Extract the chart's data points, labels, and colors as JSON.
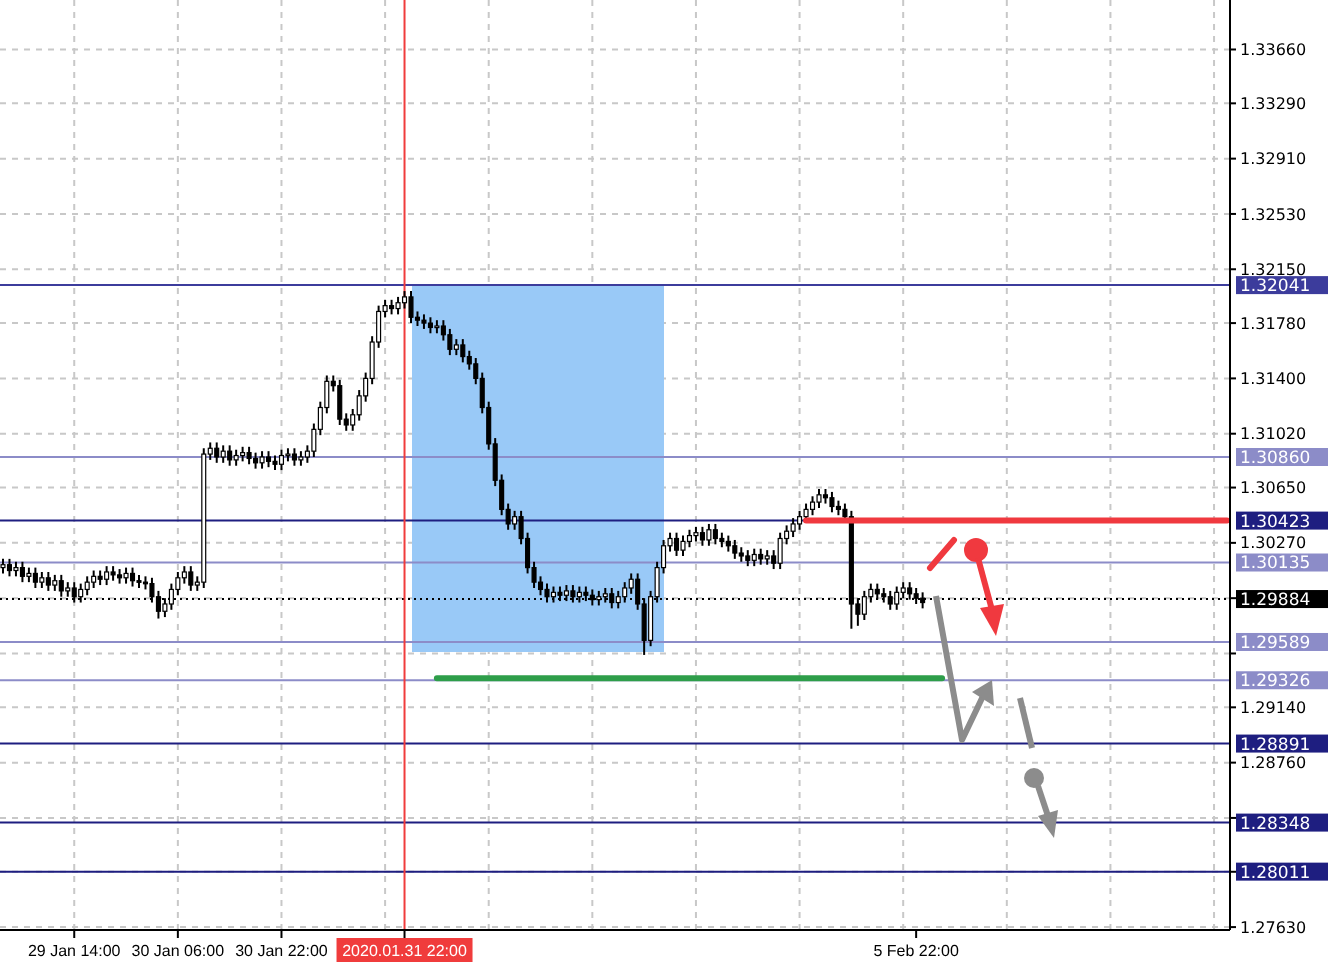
{
  "chart_data": {
    "type": "candlestick",
    "categories": [
      null,
      null,
      null,
      null,
      null,
      null,
      null,
      null,
      null,
      null,
      null,
      "29 Jan 14:00",
      null,
      null,
      null,
      null,
      null,
      null,
      null,
      null,
      null,
      null,
      null,
      null,
      null,
      null,
      null,
      "30 Jan 06:00",
      null,
      null,
      null,
      null,
      null,
      null,
      null,
      null,
      null,
      null,
      null,
      null,
      null,
      null,
      null,
      "30 Jan 22:00",
      null,
      null,
      null,
      null,
      null,
      null,
      null,
      null,
      null,
      null,
      null,
      null,
      null,
      null,
      null,
      null,
      null,
      null,
      "2020.01.31 22:00",
      null,
      null,
      null,
      null,
      null,
      null,
      null,
      null,
      null,
      null,
      null,
      null,
      null,
      null,
      null,
      null,
      null,
      null,
      null,
      null,
      null,
      null,
      null,
      null,
      null,
      null,
      null,
      null,
      null,
      null,
      null,
      null,
      null,
      null,
      null,
      null,
      null,
      null,
      null,
      null,
      null,
      null,
      null,
      null,
      null,
      null,
      null,
      null,
      null,
      null,
      null,
      null,
      null,
      null,
      null,
      null,
      null,
      null,
      null,
      null,
      null,
      null,
      null,
      null,
      null,
      null,
      null,
      null,
      null,
      null,
      null,
      null,
      null,
      null,
      null,
      null,
      null,
      null,
      "5 Feb 22:00",
      null,
      null,
      null,
      null,
      null,
      null,
      null,
      null,
      null,
      null,
      null,
      null,
      null,
      null,
      null,
      null,
      null,
      null,
      null,
      null,
      null,
      null,
      null,
      null,
      null,
      null,
      null,
      null,
      null,
      null,
      null,
      null,
      null,
      null,
      null,
      null,
      null,
      null,
      null,
      null,
      null,
      null,
      null,
      null,
      null,
      null,
      null,
      null
    ],
    "ohlc": [
      [
        1.301,
        1.3016,
        1.3006,
        1.3012
      ],
      [
        1.3012,
        1.3016,
        1.3004,
        1.3008
      ],
      [
        1.3008,
        1.3014,
        1.3004,
        1.301
      ],
      [
        1.301,
        1.3014,
        1.3,
        1.3004
      ],
      [
        1.3004,
        1.301,
        1.3,
        1.3006
      ],
      [
        1.3006,
        1.301,
        1.2996,
        1.3
      ],
      [
        1.3,
        1.3007,
        1.2996,
        1.3003
      ],
      [
        1.3003,
        1.3007,
        1.2994,
        1.2998
      ],
      [
        1.2998,
        1.3005,
        1.2994,
        1.3001
      ],
      [
        1.3001,
        1.3005,
        1.299,
        1.2994
      ],
      [
        1.2994,
        1.3,
        1.299,
        1.2996
      ],
      [
        1.2996,
        1.3,
        1.2986,
        1.299
      ],
      [
        1.299,
        1.2999,
        1.2986,
        1.2995
      ],
      [
        1.2995,
        1.3004,
        1.2991,
        1.3
      ],
      [
        1.3,
        1.3008,
        1.2996,
        1.3004
      ],
      [
        1.3004,
        1.3008,
        1.2998,
        1.3002
      ],
      [
        1.3002,
        1.3011,
        1.2998,
        1.3007
      ],
      [
        1.3007,
        1.3011,
        1.3001,
        1.3005
      ],
      [
        1.3005,
        1.3009,
        1.2999,
        1.3003
      ],
      [
        1.3003,
        1.301,
        1.2999,
        1.3006
      ],
      [
        1.3006,
        1.301,
        1.2997,
        1.3001
      ],
      [
        1.3001,
        1.3005,
        1.2996,
        1.3
      ],
      [
        1.3,
        1.3004,
        1.2995,
        1.2999
      ],
      [
        1.2999,
        1.3003,
        1.2986,
        1.299
      ],
      [
        1.299,
        1.2994,
        1.2975,
        1.298
      ],
      [
        1.298,
        1.2989,
        1.2976,
        1.2985
      ],
      [
        1.2985,
        1.2999,
        1.2981,
        1.2995
      ],
      [
        1.2995,
        1.3007,
        1.2991,
        1.3003
      ],
      [
        1.3003,
        1.3011,
        1.2999,
        1.3007
      ],
      [
        1.3007,
        1.3011,
        1.2994,
        1.2998
      ],
      [
        1.2998,
        1.3004,
        1.2994,
        1.3
      ],
      [
        1.3,
        1.3092,
        1.2996,
        1.3088
      ],
      [
        1.3088,
        1.3096,
        1.3084,
        1.3092
      ],
      [
        1.3092,
        1.3096,
        1.3082,
        1.3086
      ],
      [
        1.3086,
        1.3094,
        1.3082,
        1.309
      ],
      [
        1.309,
        1.3094,
        1.308,
        1.3084
      ],
      [
        1.3084,
        1.3091,
        1.308,
        1.3087
      ],
      [
        1.3087,
        1.3093,
        1.3083,
        1.3089
      ],
      [
        1.3089,
        1.3093,
        1.3081,
        1.3085
      ],
      [
        1.3085,
        1.3089,
        1.3078,
        1.3082
      ],
      [
        1.3082,
        1.309,
        1.3078,
        1.3086
      ],
      [
        1.3086,
        1.309,
        1.3079,
        1.3083
      ],
      [
        1.3083,
        1.3087,
        1.3077,
        1.3081
      ],
      [
        1.3081,
        1.3091,
        1.3077,
        1.3087
      ],
      [
        1.3087,
        1.3092,
        1.3083,
        1.3088
      ],
      [
        1.3088,
        1.3092,
        1.308,
        1.3084
      ],
      [
        1.3084,
        1.309,
        1.308,
        1.3086
      ],
      [
        1.3086,
        1.3094,
        1.3082,
        1.309
      ],
      [
        1.309,
        1.3109,
        1.3086,
        1.3105
      ],
      [
        1.3105,
        1.3124,
        1.3101,
        1.312
      ],
      [
        1.312,
        1.3142,
        1.3116,
        1.3138
      ],
      [
        1.3138,
        1.3142,
        1.3131,
        1.3135
      ],
      [
        1.3135,
        1.3139,
        1.3108,
        1.3112
      ],
      [
        1.3112,
        1.3116,
        1.3104,
        1.3108
      ],
      [
        1.3108,
        1.3119,
        1.3104,
        1.3115
      ],
      [
        1.3115,
        1.3132,
        1.3111,
        1.3128
      ],
      [
        1.3128,
        1.3144,
        1.3124,
        1.314
      ],
      [
        1.314,
        1.3169,
        1.3136,
        1.3165
      ],
      [
        1.3165,
        1.319,
        1.3161,
        1.3186
      ],
      [
        1.3186,
        1.3194,
        1.3182,
        1.319
      ],
      [
        1.319,
        1.3194,
        1.3184,
        1.3188
      ],
      [
        1.3188,
        1.3196,
        1.3184,
        1.3192
      ],
      [
        1.3192,
        1.32,
        1.3188,
        1.3196
      ],
      [
        1.3196,
        1.32,
        1.3178,
        1.3182
      ],
      [
        1.3182,
        1.3186,
        1.3176,
        1.318
      ],
      [
        1.318,
        1.3184,
        1.3174,
        1.3178
      ],
      [
        1.3178,
        1.3182,
        1.3171,
        1.3175
      ],
      [
        1.3175,
        1.318,
        1.3171,
        1.3176
      ],
      [
        1.3176,
        1.318,
        1.3166,
        1.317
      ],
      [
        1.317,
        1.3174,
        1.3156,
        1.316
      ],
      [
        1.316,
        1.3167,
        1.3156,
        1.3163
      ],
      [
        1.3163,
        1.3167,
        1.3151,
        1.3155
      ],
      [
        1.3155,
        1.3159,
        1.3146,
        1.315
      ],
      [
        1.315,
        1.3154,
        1.3136,
        1.314
      ],
      [
        1.314,
        1.3144,
        1.3116,
        1.312
      ],
      [
        1.312,
        1.3124,
        1.3091,
        1.3095
      ],
      [
        1.3095,
        1.3099,
        1.3066,
        1.307
      ],
      [
        1.307,
        1.3074,
        1.3046,
        1.305
      ],
      [
        1.305,
        1.3054,
        1.3036,
        1.304
      ],
      [
        1.304,
        1.3049,
        1.3036,
        1.3045
      ],
      [
        1.3045,
        1.3049,
        1.3026,
        1.303
      ],
      [
        1.303,
        1.3034,
        1.3006,
        1.301
      ],
      [
        1.301,
        1.3014,
        1.2996,
        1.3
      ],
      [
        1.3,
        1.3004,
        1.2991,
        1.2995
      ],
      [
        1.2995,
        1.2999,
        1.2986,
        1.299
      ],
      [
        1.299,
        1.2997,
        1.2986,
        1.2993
      ],
      [
        1.2993,
        1.2997,
        1.2987,
        1.2991
      ],
      [
        1.2991,
        1.2998,
        1.2987,
        1.2994
      ],
      [
        1.2994,
        1.2998,
        1.2986,
        1.299
      ],
      [
        1.299,
        1.2997,
        1.2986,
        1.2993
      ],
      [
        1.2993,
        1.2997,
        1.2987,
        1.2991
      ],
      [
        1.2991,
        1.2995,
        1.2984,
        1.2988
      ],
      [
        1.2988,
        1.2994,
        1.2984,
        1.299
      ],
      [
        1.299,
        1.2996,
        1.2986,
        1.2992
      ],
      [
        1.2992,
        1.2996,
        1.2982,
        1.2986
      ],
      [
        1.2986,
        1.2994,
        1.2982,
        1.299
      ],
      [
        1.299,
        1.3,
        1.2986,
        1.2996
      ],
      [
        1.2996,
        1.3006,
        1.2992,
        1.3002
      ],
      [
        1.3002,
        1.3006,
        1.2981,
        1.2985
      ],
      [
        1.2985,
        1.2989,
        1.295,
        1.296
      ],
      [
        1.296,
        1.2994,
        1.2956,
        1.299
      ],
      [
        1.299,
        1.3014,
        1.2986,
        1.301
      ],
      [
        1.301,
        1.3029,
        1.3006,
        1.3025
      ],
      [
        1.3025,
        1.3034,
        1.3021,
        1.303
      ],
      [
        1.303,
        1.3034,
        1.3018,
        1.3022
      ],
      [
        1.3022,
        1.3032,
        1.3018,
        1.3028
      ],
      [
        1.3028,
        1.3036,
        1.3024,
        1.3032
      ],
      [
        1.3032,
        1.3038,
        1.3028,
        1.3034
      ],
      [
        1.3034,
        1.3038,
        1.3025,
        1.3029
      ],
      [
        1.3029,
        1.304,
        1.3025,
        1.3036
      ],
      [
        1.3036,
        1.304,
        1.3026,
        1.303
      ],
      [
        1.303,
        1.3034,
        1.3024,
        1.3028
      ],
      [
        1.3028,
        1.3032,
        1.3021,
        1.3025
      ],
      [
        1.3025,
        1.3029,
        1.3016,
        1.302
      ],
      [
        1.302,
        1.3024,
        1.3014,
        1.3018
      ],
      [
        1.3018,
        1.3022,
        1.3011,
        1.3015
      ],
      [
        1.3015,
        1.3023,
        1.3011,
        1.3019
      ],
      [
        1.3019,
        1.3023,
        1.3012,
        1.3016
      ],
      [
        1.3016,
        1.3022,
        1.3012,
        1.3018
      ],
      [
        1.3018,
        1.3022,
        1.3009,
        1.3013
      ],
      [
        1.3013,
        1.3034,
        1.3009,
        1.303
      ],
      [
        1.303,
        1.3039,
        1.3026,
        1.3035
      ],
      [
        1.3035,
        1.3044,
        1.3031,
        1.304
      ],
      [
        1.304,
        1.3049,
        1.3036,
        1.3045
      ],
      [
        1.3045,
        1.3054,
        1.3041,
        1.305
      ],
      [
        1.305,
        1.3059,
        1.3046,
        1.3055
      ],
      [
        1.3055,
        1.3064,
        1.3051,
        1.306
      ],
      [
        1.306,
        1.3064,
        1.3054,
        1.3058
      ],
      [
        1.3058,
        1.3062,
        1.3048,
        1.3052
      ],
      [
        1.3052,
        1.3056,
        1.3046,
        1.305
      ],
      [
        1.305,
        1.3054,
        1.3041,
        1.3045
      ],
      [
        1.3045,
        1.3049,
        1.2968,
        1.2985
      ],
      [
        1.2985,
        1.2989,
        1.297,
        1.2978
      ],
      [
        1.2978,
        1.2994,
        1.2974,
        1.299
      ],
      [
        1.299,
        1.2999,
        1.2986,
        1.2995
      ],
      [
        1.2995,
        1.2999,
        1.2988,
        1.2992
      ],
      [
        1.2992,
        1.2996,
        1.2986,
        1.299
      ],
      [
        1.299,
        1.2994,
        1.2981,
        1.2985
      ],
      [
        1.2985,
        1.2997,
        1.2981,
        1.2993
      ],
      [
        1.2993,
        1.3,
        1.2989,
        1.2996
      ],
      [
        1.2996,
        1.3,
        1.2988,
        1.2992
      ],
      [
        1.2992,
        1.2996,
        1.2985,
        1.2989
      ],
      [
        1.2989,
        1.2993,
        1.2982,
        1.2986
      ],
      null,
      null,
      null,
      null,
      null,
      null,
      null,
      null,
      null,
      null,
      null,
      null,
      null,
      null,
      null,
      null,
      null,
      null,
      null,
      null,
      null,
      null,
      null,
      null,
      null,
      null,
      null,
      null,
      null,
      null,
      null,
      null,
      null,
      null,
      null,
      null,
      null,
      null,
      null,
      null,
      null,
      null,
      null,
      null,
      null,
      null,
      null
    ],
    "series": [
      {
        "type": "line",
        "color": "#2e9e4a",
        "values": [
          null,
          null,
          null,
          null,
          null,
          null,
          null,
          null,
          null,
          null,
          null,
          null,
          null,
          null,
          null,
          null,
          null,
          null,
          null,
          null,
          null,
          null,
          null,
          null,
          null,
          null,
          null,
          null,
          null,
          null,
          null,
          null,
          null,
          null,
          null,
          null,
          null,
          null,
          null,
          null,
          null,
          null,
          null,
          null,
          null,
          null,
          null,
          null,
          null,
          null,
          null,
          null,
          null,
          null,
          null,
          null,
          null,
          null,
          null,
          null,
          null,
          null,
          null,
          null,
          null,
          null,
          null,
          1.2934,
          1.2934,
          1.2934,
          1.2934,
          1.2934,
          1.2934,
          1.2934,
          1.2934,
          1.2934,
          1.2934,
          1.2934,
          1.2934,
          1.2934,
          1.2934,
          1.2934,
          1.2934,
          1.2934,
          1.2934,
          1.2934,
          1.2934,
          1.2934,
          1.2934,
          1.2934,
          1.2934,
          1.2934,
          1.2934,
          1.2934,
          1.2934,
          1.2934,
          1.2934,
          1.2934,
          1.2934,
          1.2934,
          1.2934,
          1.2934,
          1.2934,
          1.2934,
          1.2934,
          1.2934,
          1.2934,
          1.2934,
          1.2934,
          1.2934,
          1.2934,
          1.2934,
          1.2934,
          1.2934,
          1.2934,
          1.2934,
          1.2934,
          1.2934,
          1.2934,
          1.2934,
          1.2934,
          1.2934,
          1.2934,
          1.2934,
          1.2934,
          1.2934,
          1.2934,
          1.2934,
          1.2934,
          1.2934,
          1.2934,
          1.2934,
          1.2934,
          1.2934,
          1.2934,
          1.2934,
          1.2934,
          1.2934,
          1.2934,
          1.2934,
          1.2934,
          1.2934,
          1.2934,
          1.2934,
          1.2934,
          1.2934,
          null,
          null,
          null,
          null,
          null,
          null,
          null,
          null,
          null,
          null,
          null,
          null,
          null,
          null,
          null,
          null,
          null,
          null,
          null,
          null,
          null,
          null,
          null,
          null,
          null,
          null,
          null,
          null,
          null,
          null,
          null,
          null,
          null,
          null,
          null,
          null,
          null,
          null,
          null,
          null,
          null,
          null,
          null,
          null
        ]
      },
      {
        "type": "line",
        "color": "#f0393f",
        "values": [
          null,
          null,
          null,
          null,
          null,
          null,
          null,
          null,
          null,
          null,
          null,
          null,
          null,
          null,
          null,
          null,
          null,
          null,
          null,
          null,
          null,
          null,
          null,
          null,
          null,
          null,
          null,
          null,
          null,
          null,
          null,
          null,
          null,
          null,
          null,
          null,
          null,
          null,
          null,
          null,
          null,
          null,
          null,
          null,
          null,
          null,
          null,
          null,
          null,
          null,
          null,
          null,
          null,
          null,
          null,
          null,
          null,
          null,
          null,
          null,
          null,
          null,
          null,
          null,
          null,
          null,
          null,
          null,
          null,
          null,
          null,
          null,
          null,
          null,
          null,
          null,
          null,
          null,
          null,
          null,
          null,
          null,
          null,
          null,
          null,
          null,
          null,
          null,
          null,
          null,
          null,
          null,
          null,
          null,
          null,
          null,
          null,
          null,
          null,
          null,
          null,
          null,
          null,
          null,
          null,
          null,
          null,
          null,
          null,
          null,
          null,
          null,
          null,
          null,
          null,
          null,
          null,
          null,
          null,
          null,
          null,
          null,
          null,
          null,
          1.30423,
          1.30423,
          1.30423,
          1.30423,
          1.30423,
          1.30423,
          1.30423,
          1.30423,
          1.30423,
          1.30423,
          1.30423,
          1.30423,
          1.30423,
          1.30423,
          1.30423,
          1.30423,
          1.30423,
          1.30423,
          1.30423,
          1.30423,
          1.30423,
          1.30423,
          1.30423,
          1.30423,
          1.30423,
          1.30423,
          1.30423,
          1.30423,
          1.30423,
          1.30423,
          1.30423,
          1.30423,
          1.30423,
          1.30423,
          1.30423,
          1.30423,
          1.30423,
          1.30423,
          1.30423,
          1.30423,
          1.30423,
          1.30423,
          1.30423,
          1.30423,
          1.30423,
          1.30423,
          1.30423,
          1.30423,
          1.30423,
          1.30423,
          1.30423,
          1.30423,
          1.30423,
          1.30423,
          1.30423,
          1.30423,
          1.30423,
          1.30423,
          1.30423,
          1.30423,
          1.30423,
          1.30423,
          1.30423,
          1.30423,
          1.30423,
          1.30423
        ]
      }
    ],
    "ylim": [
      1.2761,
      1.34
    ],
    "yticks": [
      {
        "value": 1.3366,
        "label": "1.33660"
      },
      {
        "value": 1.3329,
        "label": "1.33290"
      },
      {
        "value": 1.3291,
        "label": "1.32910"
      },
      {
        "value": 1.3253,
        "label": "1.32530"
      },
      {
        "value": 1.3215,
        "label": "1.32150"
      },
      {
        "value": 1.3178,
        "label": "1.31780"
      },
      {
        "value": 1.314,
        "label": "1.31400"
      },
      {
        "value": 1.3102,
        "label": "1.31020"
      },
      {
        "value": 1.3065,
        "label": "1.30650"
      },
      {
        "value": 1.3027,
        "label": "1.30270"
      },
      {
        "value": 1.2989,
        "label": null
      },
      {
        "value": 1.2951,
        "label": null
      },
      {
        "value": 1.2914,
        "label": "1.29140"
      },
      {
        "value": 1.2876,
        "label": "1.28760"
      },
      {
        "value": 1.2838,
        "label": null
      },
      {
        "value": 1.2801,
        "label": null
      },
      {
        "value": 1.2763,
        "label": "1.27630"
      }
    ],
    "ref_lines": [
      {
        "axis": "y",
        "value": 1.32041,
        "label": "1.32041",
        "color": "#3c3c9c"
      },
      {
        "axis": "y",
        "value": 1.3086,
        "label": "1.30860",
        "color": "#8c8cc8"
      },
      {
        "axis": "y",
        "value": 1.30423,
        "label": "1.30423",
        "color": "#1e1e80"
      },
      {
        "axis": "y",
        "value": 1.30135,
        "label": "1.30135",
        "color": "#8c8cc8"
      },
      {
        "axis": "y",
        "value": 1.29884,
        "label": "1.29884",
        "color": "#000000",
        "line_style": "dotted"
      },
      {
        "axis": "y",
        "value": 1.29589,
        "label": "1.29589",
        "color": "#8c8cc8"
      },
      {
        "axis": "y",
        "value": 1.29326,
        "label": "1.29326",
        "color": "#8c8cc8"
      },
      {
        "axis": "y",
        "value": 1.28891,
        "label": "1.28891",
        "color": "#1e1e80"
      },
      {
        "axis": "y",
        "value": 1.28348,
        "label": "1.28348",
        "color": "#1e1e80"
      },
      {
        "axis": "y",
        "value": 1.28011,
        "label": "1.28011",
        "color": "#1e1e80"
      },
      {
        "axis": "x",
        "value": "2020.01.31 22:00",
        "color": "#f03c3c"
      }
    ],
    "grid": true
  }
}
